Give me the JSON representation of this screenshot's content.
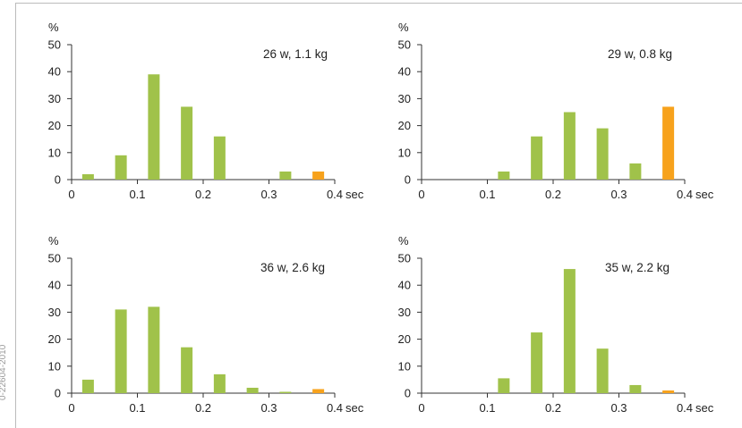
{
  "side_label": "0-22604-2010",
  "colors": {
    "main": "#a0c24a",
    "highlight": "#f7a21c",
    "axis": "#333333",
    "frame": "#bbbbbb"
  },
  "chart_data": [
    {
      "type": "bar",
      "title": "26 w, 1.1 kg",
      "ylabel": "%",
      "xlabel": "sec",
      "ylim": [
        0,
        50
      ],
      "xlim": [
        0,
        0.4
      ],
      "yticks": [
        "0",
        "10",
        "20",
        "30",
        "40",
        "50"
      ],
      "xticks": [
        "0",
        "0.1",
        "0.2",
        "0.3",
        "0.4"
      ],
      "x": [
        0.025,
        0.075,
        0.125,
        0.175,
        0.225,
        0.275,
        0.325,
        0.375
      ],
      "values": [
        2,
        9,
        39,
        27,
        16,
        0,
        3,
        3
      ],
      "highlight_index": 7
    },
    {
      "type": "bar",
      "title": "29 w, 0.8 kg",
      "ylabel": "%",
      "xlabel": "sec",
      "ylim": [
        0,
        50
      ],
      "xlim": [
        0,
        0.4
      ],
      "yticks": [
        "0",
        "10",
        "20",
        "30",
        "40",
        "50"
      ],
      "xticks": [
        "0",
        "0.1",
        "0.2",
        "0.3",
        "0.4"
      ],
      "x": [
        0.025,
        0.075,
        0.125,
        0.175,
        0.225,
        0.275,
        0.325,
        0.375
      ],
      "values": [
        0,
        0,
        3,
        16,
        25,
        19,
        6,
        27
      ],
      "highlight_index": 7
    },
    {
      "type": "bar",
      "title": "36 w, 2.6 kg",
      "ylabel": "%",
      "xlabel": "sec",
      "ylim": [
        0,
        50
      ],
      "xlim": [
        0,
        0.4
      ],
      "yticks": [
        "0",
        "10",
        "20",
        "30",
        "40",
        "50"
      ],
      "xticks": [
        "0",
        "0.1",
        "0.2",
        "0.3",
        "0.4"
      ],
      "x": [
        0.025,
        0.075,
        0.125,
        0.175,
        0.225,
        0.275,
        0.325,
        0.375
      ],
      "values": [
        5,
        31,
        32,
        17,
        7,
        2,
        0.5,
        1.5
      ],
      "highlight_index": 7
    },
    {
      "type": "bar",
      "title": "35 w, 2.2 kg",
      "ylabel": "%",
      "xlabel": "sec",
      "ylim": [
        0,
        50
      ],
      "xlim": [
        0,
        0.4
      ],
      "yticks": [
        "0",
        "10",
        "20",
        "30",
        "40",
        "50"
      ],
      "xticks": [
        "0",
        "0.1",
        "0.2",
        "0.3",
        "0.4"
      ],
      "x": [
        0.025,
        0.075,
        0.125,
        0.175,
        0.225,
        0.275,
        0.325,
        0.375
      ],
      "values": [
        0,
        0,
        5.5,
        22.5,
        46,
        16.5,
        3,
        1
      ],
      "highlight_index": 7
    }
  ]
}
